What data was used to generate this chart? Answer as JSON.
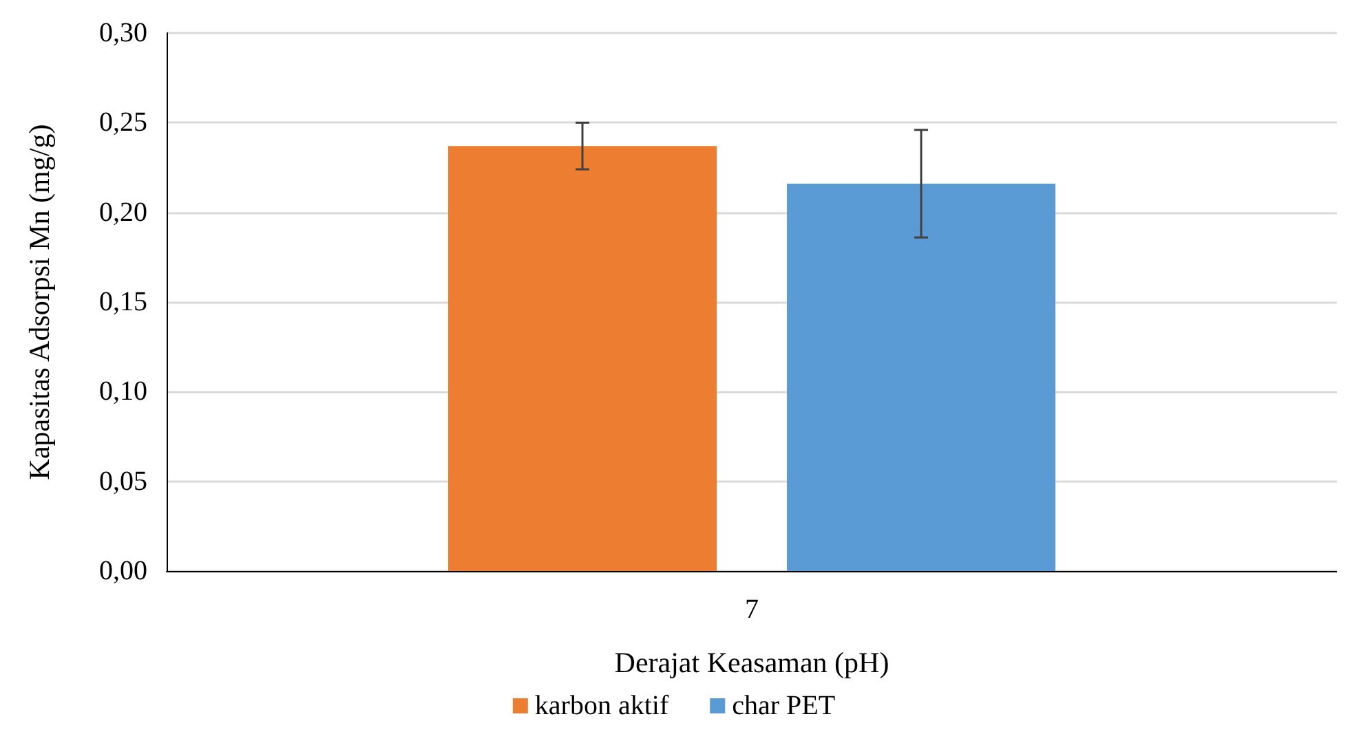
{
  "chart_data": {
    "type": "bar",
    "xlabel": "Derajat Keasaman (pH)",
    "ylabel": "Kapasitas Adsorpsi Mn (mg/g)",
    "categories": [
      "7"
    ],
    "series": [
      {
        "name": "karbon aktif",
        "color": "#ed7d31",
        "values": [
          0.237
        ],
        "errors": [
          [
            0.224,
            0.25
          ]
        ]
      },
      {
        "name": "char PET",
        "color": "#5b9bd5",
        "values": [
          0.216
        ],
        "errors": [
          [
            0.186,
            0.246
          ]
        ]
      }
    ],
    "ylim": [
      0,
      0.3
    ],
    "yticks": [
      {
        "value": 0,
        "label": "0,00"
      },
      {
        "value": 0.05,
        "label": "0,05"
      },
      {
        "value": 0.1,
        "label": "0,10"
      },
      {
        "value": 0.15,
        "label": "0,15"
      },
      {
        "value": 0.2,
        "label": "0,20"
      },
      {
        "value": 0.25,
        "label": "0,25"
      },
      {
        "value": 0.3,
        "label": "0,30"
      }
    ],
    "grid": "y",
    "legend": "bottom"
  }
}
